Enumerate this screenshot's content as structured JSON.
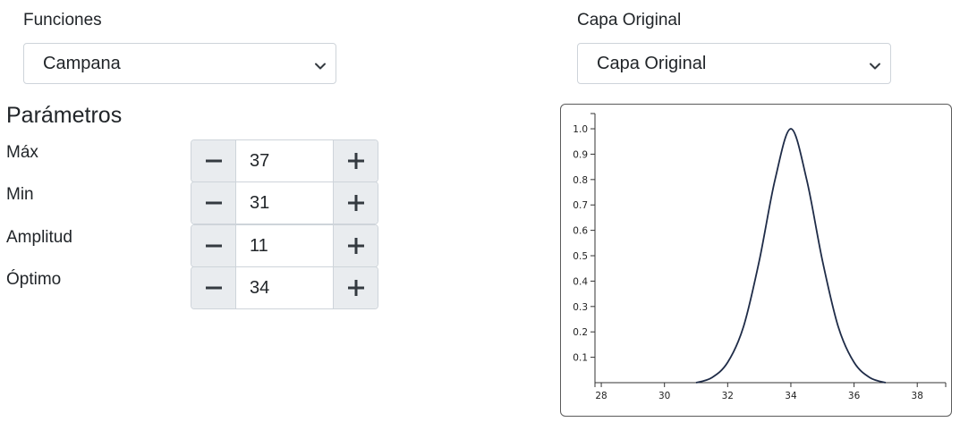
{
  "functions": {
    "label": "Funciones",
    "selected": "Campana"
  },
  "layer": {
    "label": "Capa Original",
    "selected": "Capa Original"
  },
  "params": {
    "heading": "Parámetros",
    "items": [
      {
        "label": "Máx",
        "value": "37"
      },
      {
        "label": "Min",
        "value": "31"
      },
      {
        "label": "Amplitud",
        "value": "11"
      },
      {
        "label": "Óptimo",
        "value": "34"
      }
    ]
  },
  "chart_data": {
    "type": "line",
    "xlim": [
      27.8,
      38.9
    ],
    "ylim": [
      0,
      1.06
    ],
    "x_ticks": [
      "28",
      "30",
      "32",
      "34",
      "36",
      "38"
    ],
    "y_ticks": [
      "0.1",
      "0.2",
      "0.3",
      "0.4",
      "0.5",
      "0.6",
      "0.7",
      "0.8",
      "0.9",
      "1.0"
    ],
    "series": [
      {
        "color": "#1f2c48",
        "x": [
          31,
          31.5,
          32,
          32.5,
          33,
          33.5,
          34,
          34.5,
          35,
          35.5,
          36,
          36.5,
          37
        ],
        "y": [
          0,
          0.02,
          0.08,
          0.22,
          0.48,
          0.8,
          1.0,
          0.8,
          0.48,
          0.22,
          0.08,
          0.02,
          0
        ]
      }
    ]
  }
}
